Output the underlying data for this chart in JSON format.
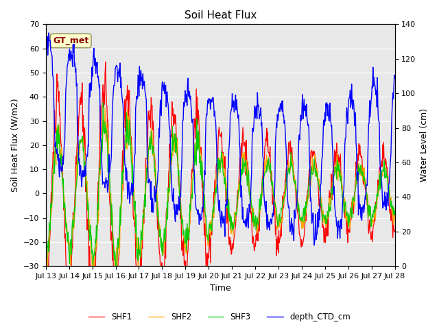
{
  "title": "Soil Heat Flux",
  "xlabel": "Time",
  "ylabel_left": "Soil Heat Flux (W/m2)",
  "ylabel_right": "Water Level (cm)",
  "ylim_left": [
    -30,
    70
  ],
  "ylim_right": [
    0,
    140
  ],
  "yticks_left": [
    -30,
    -20,
    -10,
    0,
    10,
    20,
    30,
    40,
    50,
    60,
    70
  ],
  "yticks_right": [
    0,
    20,
    40,
    60,
    80,
    100,
    120,
    140
  ],
  "plot_bg_color": "#e8e8e8",
  "fig_bg_color": "#ffffff",
  "annotation_text": "GT_met",
  "annotation_color": "#8b0000",
  "annotation_bg": "#ffffcc",
  "annotation_edge": "#999966",
  "series_colors": {
    "SHF1": "#ff0000",
    "SHF2": "#ffa500",
    "SHF3": "#00cc00",
    "depth_CTD_cm": "#0000ff"
  },
  "xtick_labels": [
    "Jul 13",
    "Jul 14",
    "Jul 15",
    "Jul 16",
    "Jul 17",
    "Jul 18",
    "Jul 19",
    "Jul 20",
    "Jul 21",
    "Jul 22",
    "Jul 23",
    "Jul 24",
    "Jul 25",
    "Jul 26",
    "Jul 27",
    "Jul 28"
  ],
  "n_days": 15,
  "pts_per_day": 48
}
